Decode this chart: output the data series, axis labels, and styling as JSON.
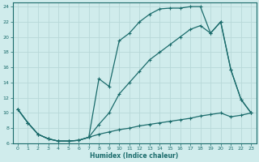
{
  "xlabel": "Humidex (Indice chaleur)",
  "bg_color": "#d0ecec",
  "grid_color": "#b8d8d8",
  "line_color": "#1a6b6b",
  "xlim": [
    -0.5,
    23.5
  ],
  "ylim": [
    6,
    24.5
  ],
  "xticks": [
    0,
    1,
    2,
    3,
    4,
    5,
    6,
    7,
    8,
    9,
    10,
    11,
    12,
    13,
    14,
    15,
    16,
    17,
    18,
    19,
    20,
    21,
    22,
    23
  ],
  "yticks": [
    6,
    8,
    10,
    12,
    14,
    16,
    18,
    20,
    22,
    24
  ],
  "line1_x": [
    0,
    1,
    2,
    3,
    4,
    5,
    6,
    7,
    8,
    9,
    10,
    11,
    12,
    13,
    14,
    15,
    16,
    17,
    18,
    19,
    20,
    21,
    22,
    23
  ],
  "line1_y": [
    10.5,
    8.7,
    7.2,
    6.6,
    6.3,
    6.3,
    6.4,
    6.8,
    7.2,
    7.5,
    7.8,
    8.0,
    8.3,
    8.5,
    8.7,
    8.9,
    9.1,
    9.3,
    9.6,
    9.8,
    10.0,
    9.5,
    9.7,
    10.0
  ],
  "line2_x": [
    0,
    1,
    2,
    3,
    4,
    5,
    6,
    7,
    8,
    9,
    10,
    11,
    12,
    13,
    14,
    15,
    16,
    17,
    18,
    19,
    20,
    21,
    22,
    23
  ],
  "line2_y": [
    10.5,
    8.7,
    7.2,
    6.6,
    6.3,
    6.3,
    6.4,
    6.8,
    14.5,
    13.5,
    19.5,
    20.5,
    22.0,
    23.0,
    23.7,
    23.8,
    23.8,
    24.0,
    24.0,
    20.5,
    22.0,
    15.7,
    11.8,
    10.0
  ],
  "line3_x": [
    0,
    1,
    2,
    3,
    4,
    5,
    6,
    7,
    8,
    9,
    10,
    11,
    12,
    13,
    14,
    15,
    16,
    17,
    18,
    19,
    20,
    21,
    22,
    23
  ],
  "line3_y": [
    10.5,
    8.7,
    7.2,
    6.6,
    6.3,
    6.3,
    6.4,
    6.8,
    8.5,
    10.0,
    12.5,
    14.0,
    15.5,
    17.0,
    18.0,
    19.0,
    20.0,
    21.0,
    21.5,
    20.5,
    22.0,
    15.7,
    11.8,
    10.0
  ]
}
